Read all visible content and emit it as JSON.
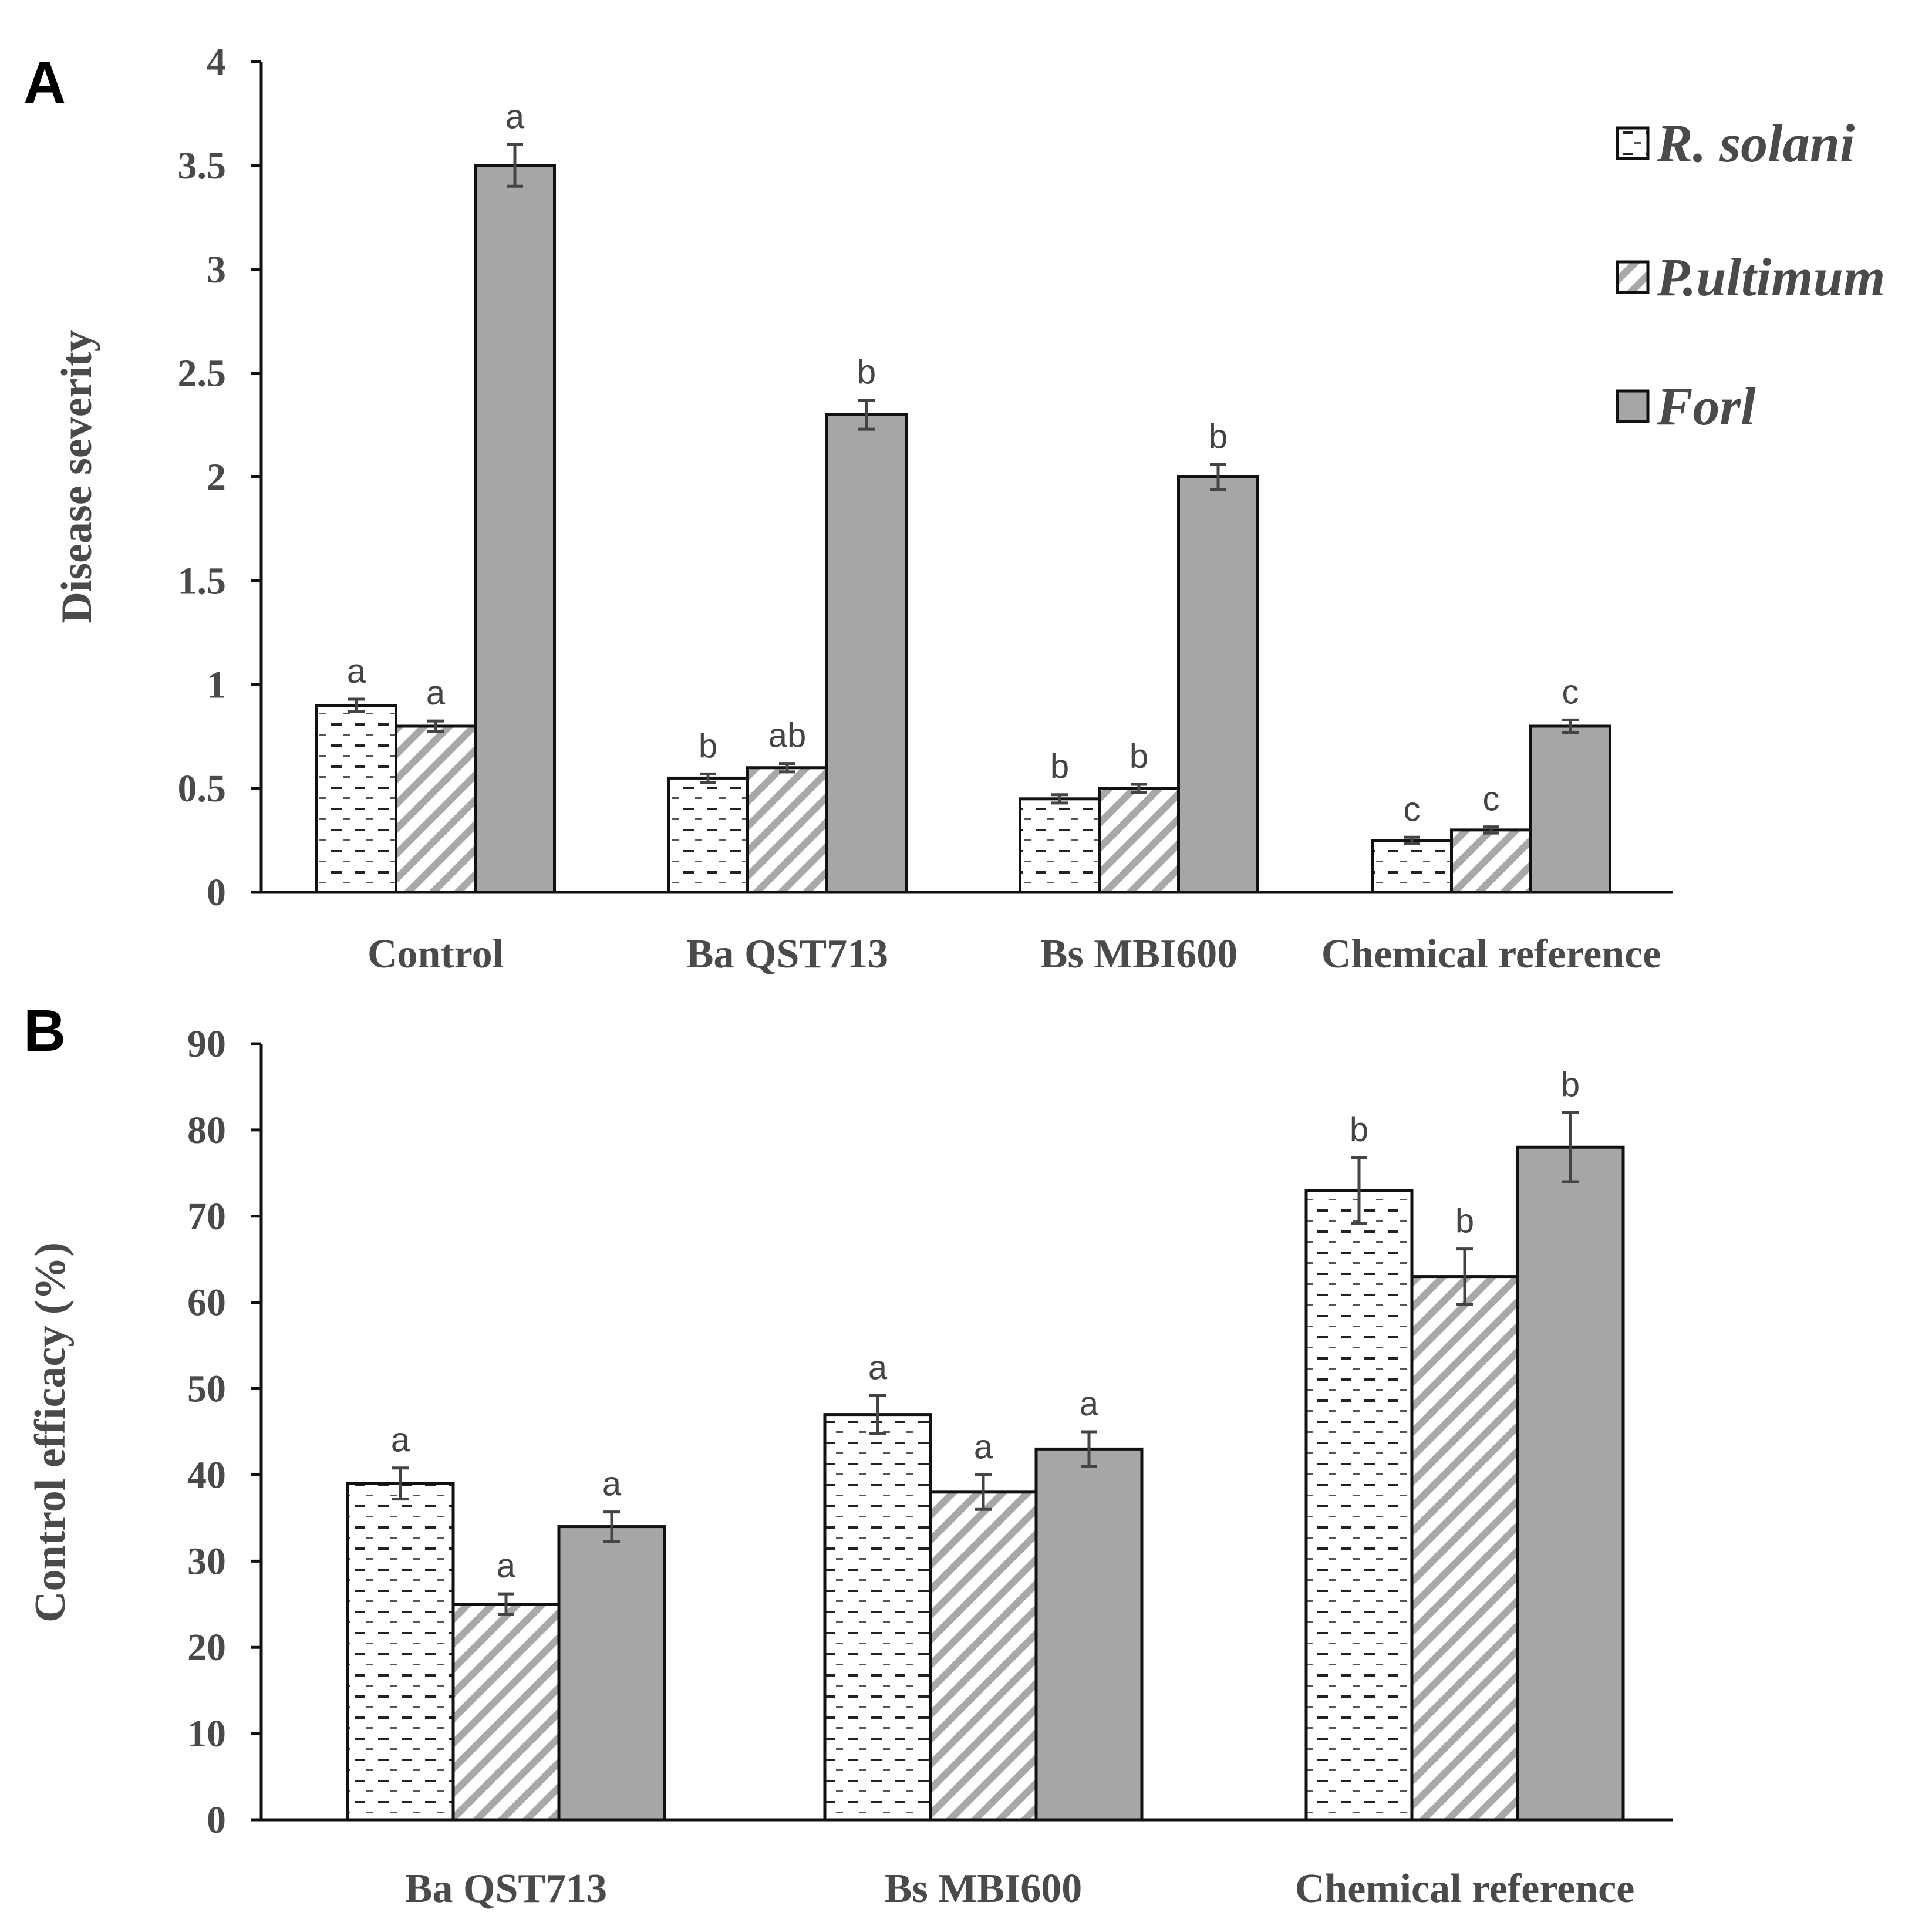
{
  "panel_labels": [
    "A",
    "B"
  ],
  "legend": [
    {
      "label": "R. solani",
      "pattern": "dash"
    },
    {
      "label": "P.ultimum",
      "pattern": "diag"
    },
    {
      "label": "Forl",
      "pattern": "solid"
    }
  ],
  "colors": {
    "forl_fill": "#a6a6a6",
    "hatch": "#a8a8a8",
    "dash": "#222222",
    "axis": "#111111",
    "text": "#4a4a4a"
  },
  "chart_data": [
    {
      "id": "A",
      "type": "bar",
      "ylabel": "Disease severity",
      "ylim": [
        0,
        4
      ],
      "yticks": [
        "0",
        "0.5",
        "1",
        "1.5",
        "2",
        "2.5",
        "3",
        "3.5",
        "4"
      ],
      "categories": [
        "Control",
        "Ba QST713",
        "Bs MBI600",
        "Chemical reference"
      ],
      "series": [
        {
          "name": "R. solani",
          "values": [
            0.9,
            0.55,
            0.45,
            0.25
          ],
          "errors": [
            0.03,
            0.02,
            0.02,
            0.015
          ],
          "letters": [
            "a",
            "b",
            "b",
            "c"
          ]
        },
        {
          "name": "P.ultimum",
          "values": [
            0.8,
            0.6,
            0.5,
            0.3
          ],
          "errors": [
            0.025,
            0.02,
            0.02,
            0.015
          ],
          "letters": [
            "a",
            "ab",
            "b",
            "c"
          ]
        },
        {
          "name": "Forl",
          "values": [
            3.5,
            2.3,
            2.0,
            0.8
          ],
          "errors": [
            0.1,
            0.07,
            0.06,
            0.03
          ],
          "letters": [
            "a",
            "b",
            "b",
            "c"
          ]
        }
      ]
    },
    {
      "id": "B",
      "type": "bar",
      "ylabel": "Control efficacy (%)",
      "ylim": [
        0,
        90
      ],
      "yticks": [
        "0",
        "10",
        "20",
        "30",
        "40",
        "50",
        "60",
        "70",
        "80",
        "90"
      ],
      "categories": [
        "Ba QST713",
        "Bs MBI600",
        "Chemical reference"
      ],
      "series": [
        {
          "name": "R. solani",
          "values": [
            39,
            47,
            73
          ],
          "errors": [
            1.8,
            2.2,
            3.8
          ],
          "letters": [
            "a",
            "a",
            "b"
          ]
        },
        {
          "name": "P.ultimum",
          "values": [
            25,
            38,
            63
          ],
          "errors": [
            1.2,
            2.0,
            3.2
          ],
          "letters": [
            "a",
            "a",
            "b"
          ]
        },
        {
          "name": "Forl",
          "values": [
            34,
            43,
            78
          ],
          "errors": [
            1.7,
            2.0,
            4.0
          ],
          "letters": [
            "a",
            "a",
            "b"
          ]
        }
      ]
    }
  ]
}
